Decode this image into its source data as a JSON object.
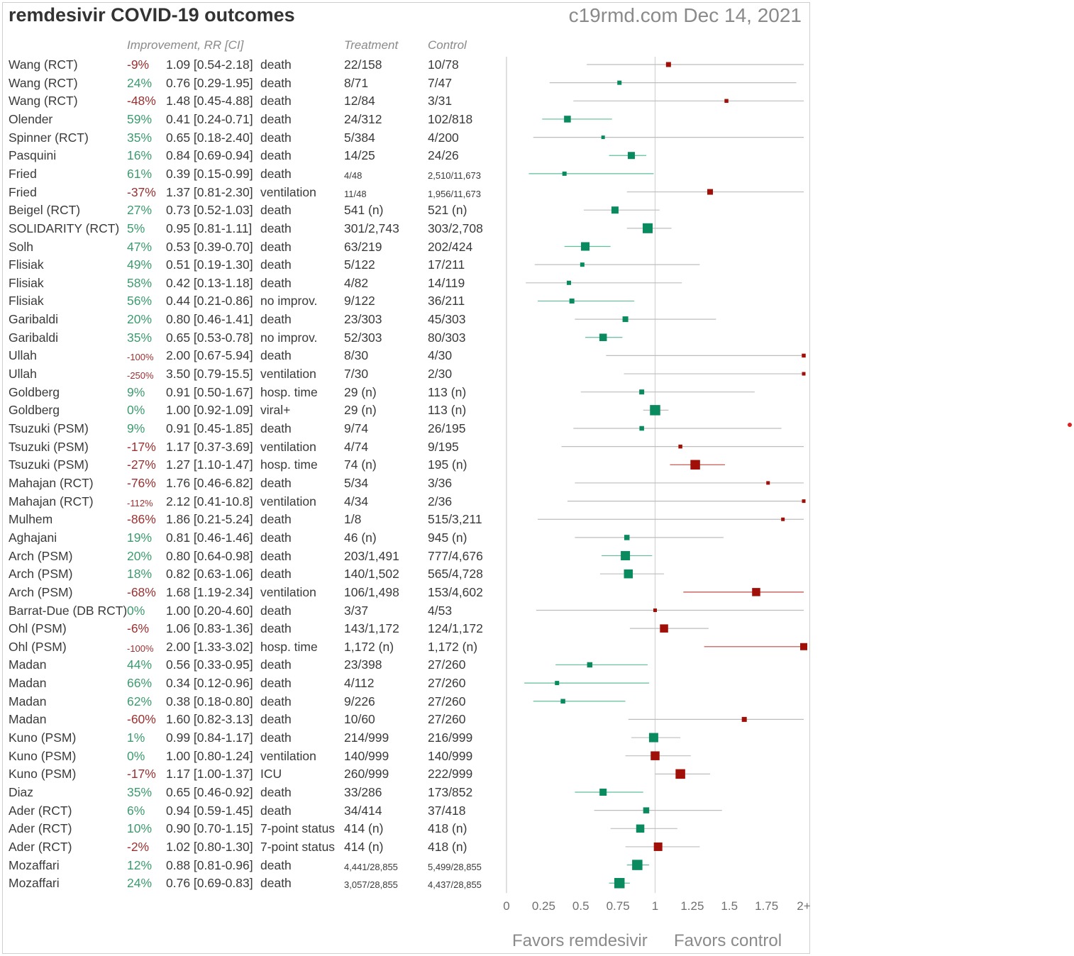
{
  "header": {
    "title": "remdesivir COVID-19 outcomes",
    "site": "c19rmd.com Dec 14, 2021",
    "col_improvement": "Improvement, RR [CI]",
    "col_treatment": "Treatment",
    "col_control": "Control"
  },
  "footer": {
    "favors_left": "Favors remdesivir",
    "favors_right": "Favors control"
  },
  "colors": {
    "good": "#0a8a5f",
    "good_line": "#5fbf97",
    "bad": "#a01008",
    "bad_line": "#c04a45",
    "neutral_line": "#bdbdbd",
    "axis": "#cccccc"
  },
  "chart_data": {
    "type": "forest",
    "xlim": [
      0,
      2
    ],
    "x_ticks": [
      "0",
      "0.25",
      "0.5",
      "0.75",
      "1",
      "1.25",
      "1.5",
      "1.75",
      "2+"
    ],
    "reference_line": 1,
    "rows": [
      {
        "study": "Wang (RCT)",
        "improvement": "-9%",
        "rr_text": "1.09 [0.54-2.18]",
        "outcome": "death",
        "treatment": "22/158",
        "control": "10/78",
        "rr": 1.09,
        "lo": 0.54,
        "hi": 2.18,
        "weight": 1
      },
      {
        "study": "Wang (RCT)",
        "improvement": "24%",
        "rr_text": "0.76 [0.29-1.95]",
        "outcome": "death",
        "treatment": "8/71",
        "control": "7/47",
        "rr": 0.76,
        "lo": 0.29,
        "hi": 1.95,
        "weight": 0.8
      },
      {
        "study": "Wang (RCT)",
        "improvement": "-48%",
        "rr_text": "1.48 [0.45-4.88]",
        "outcome": "death",
        "treatment": "12/84",
        "control": "3/31",
        "rr": 1.48,
        "lo": 0.45,
        "hi": 4.88,
        "weight": 0.7
      },
      {
        "study": "Olender",
        "improvement": "59%",
        "rr_text": "0.41 [0.24-0.71]",
        "outcome": "death",
        "treatment": "24/312",
        "control": "102/818",
        "rr": 0.41,
        "lo": 0.24,
        "hi": 0.71,
        "weight": 1.5
      },
      {
        "study": "Spinner (RCT)",
        "improvement": "35%",
        "rr_text": "0.65 [0.18-2.40]",
        "outcome": "death",
        "treatment": "5/384",
        "control": "4/200",
        "rr": 0.65,
        "lo": 0.18,
        "hi": 2.4,
        "weight": 0.6
      },
      {
        "study": "Pasquini",
        "improvement": "16%",
        "rr_text": "0.84 [0.69-0.94]",
        "outcome": "death",
        "treatment": "14/25",
        "control": "24/26",
        "rr": 0.84,
        "lo": 0.69,
        "hi": 0.94,
        "weight": 1.6
      },
      {
        "study": "Fried",
        "improvement": "61%",
        "rr_text": "0.39 [0.15-0.99]",
        "outcome": "death",
        "treatment": "4/48",
        "control": "2,510/11,673",
        "rr": 0.39,
        "lo": 0.15,
        "hi": 0.99,
        "weight": 0.8,
        "small_counts": true
      },
      {
        "study": "Fried",
        "improvement": "-37%",
        "rr_text": "1.37 [0.81-2.30]",
        "outcome": "ventilation",
        "treatment": "11/48",
        "control": "1,956/11,673",
        "rr": 1.37,
        "lo": 0.81,
        "hi": 2.3,
        "weight": 1.2,
        "small_counts": true
      },
      {
        "study": "Beigel (RCT)",
        "improvement": "27%",
        "rr_text": "0.73 [0.52-1.03]",
        "outcome": "death",
        "treatment": "541 (n)",
        "control": "521 (n)",
        "rr": 0.73,
        "lo": 0.52,
        "hi": 1.03,
        "weight": 1.6
      },
      {
        "study": "SOLIDARITY (RCT)",
        "improvement": "5%",
        "rr_text": "0.95 [0.81-1.11]",
        "outcome": "death",
        "treatment": "301/2,743",
        "control": "303/2,708",
        "rr": 0.95,
        "lo": 0.81,
        "hi": 1.11,
        "weight": 2.4
      },
      {
        "study": "Solh",
        "improvement": "47%",
        "rr_text": "0.53 [0.39-0.70]",
        "outcome": "death",
        "treatment": "63/219",
        "control": "202/424",
        "rr": 0.53,
        "lo": 0.39,
        "hi": 0.7,
        "weight": 2.0
      },
      {
        "study": "Flisiak",
        "improvement": "49%",
        "rr_text": "0.51 [0.19-1.30]",
        "outcome": "death",
        "treatment": "5/122",
        "control": "17/211",
        "rr": 0.51,
        "lo": 0.19,
        "hi": 1.3,
        "weight": 0.8
      },
      {
        "study": "Flisiak",
        "improvement": "58%",
        "rr_text": "0.42 [0.13-1.18]",
        "outcome": "death",
        "treatment": "4/82",
        "control": "14/119",
        "rr": 0.42,
        "lo": 0.13,
        "hi": 1.18,
        "weight": 0.8
      },
      {
        "study": "Flisiak",
        "improvement": "56%",
        "rr_text": "0.44 [0.21-0.86]",
        "outcome": "no improv.",
        "treatment": "9/122",
        "control": "36/211",
        "rr": 0.44,
        "lo": 0.21,
        "hi": 0.86,
        "weight": 1.0
      },
      {
        "study": "Garibaldi",
        "improvement": "20%",
        "rr_text": "0.80 [0.46-1.41]",
        "outcome": "death",
        "treatment": "23/303",
        "control": "45/303",
        "rr": 0.8,
        "lo": 0.46,
        "hi": 1.41,
        "weight": 1.2
      },
      {
        "study": "Garibaldi",
        "improvement": "35%",
        "rr_text": "0.65 [0.53-0.78]",
        "outcome": "no improv.",
        "treatment": "52/303",
        "control": "80/303",
        "rr": 0.65,
        "lo": 0.53,
        "hi": 0.78,
        "weight": 1.7
      },
      {
        "study": "Ullah",
        "improvement": "-100%",
        "rr_text": "2.00 [0.67-5.94]",
        "outcome": "death",
        "treatment": "8/30",
        "control": "4/30",
        "rr": 2.0,
        "lo": 0.67,
        "hi": 5.94,
        "weight": 0.7,
        "small_imp": true
      },
      {
        "study": "Ullah",
        "improvement": "-250%",
        "rr_text": "3.50 [0.79-15.5]",
        "outcome": "ventilation",
        "treatment": "7/30",
        "control": "2/30",
        "rr": 3.5,
        "lo": 0.79,
        "hi": 15.5,
        "weight": 0.6,
        "small_imp": true
      },
      {
        "study": "Goldberg",
        "improvement": "9%",
        "rr_text": "0.91 [0.50-1.67]",
        "outcome": "hosp. time",
        "treatment": "29 (n)",
        "control": "113 (n)",
        "rr": 0.91,
        "lo": 0.5,
        "hi": 1.67,
        "weight": 1.0
      },
      {
        "study": "Goldberg",
        "improvement": "0%",
        "rr_text": "1.00 [0.92-1.09]",
        "outcome": "viral+",
        "treatment": "29 (n)",
        "control": "113 (n)",
        "rr": 1.0,
        "lo": 0.92,
        "hi": 1.09,
        "weight": 2.5
      },
      {
        "study": "Tsuzuki (PSM)",
        "improvement": "9%",
        "rr_text": "0.91 [0.45-1.85]",
        "outcome": "death",
        "treatment": "9/74",
        "control": "26/195",
        "rr": 0.91,
        "lo": 0.45,
        "hi": 1.85,
        "weight": 0.9
      },
      {
        "study": "Tsuzuki (PSM)",
        "improvement": "-17%",
        "rr_text": "1.17 [0.37-3.69]",
        "outcome": "ventilation",
        "treatment": "4/74",
        "control": "9/195",
        "rr": 1.17,
        "lo": 0.37,
        "hi": 3.69,
        "weight": 0.7
      },
      {
        "study": "Tsuzuki (PSM)",
        "improvement": "-27%",
        "rr_text": "1.27 [1.10-1.47]",
        "outcome": "hosp. time",
        "treatment": "74 (n)",
        "control": "195 (n)",
        "rr": 1.27,
        "lo": 1.1,
        "hi": 1.47,
        "weight": 2.3
      },
      {
        "study": "Mahajan (RCT)",
        "improvement": "-76%",
        "rr_text": "1.76 [0.46-6.82]",
        "outcome": "death",
        "treatment": "5/34",
        "control": "3/36",
        "rr": 1.76,
        "lo": 0.46,
        "hi": 6.82,
        "weight": 0.6
      },
      {
        "study": "Mahajan (RCT)",
        "improvement": "-112%",
        "rr_text": "2.12 [0.41-10.8]",
        "outcome": "ventilation",
        "treatment": "4/34",
        "control": "2/36",
        "rr": 2.12,
        "lo": 0.41,
        "hi": 10.8,
        "weight": 0.6,
        "small_imp": true
      },
      {
        "study": "Mulhem",
        "improvement": "-86%",
        "rr_text": "1.86 [0.21-5.24]",
        "outcome": "death",
        "treatment": "1/8",
        "control": "515/3,211",
        "rr": 1.86,
        "lo": 0.21,
        "hi": 5.24,
        "weight": 0.6
      },
      {
        "study": "Aghajani",
        "improvement": "19%",
        "rr_text": "0.81 [0.46-1.46]",
        "outcome": "death",
        "treatment": "46 (n)",
        "control": "945 (n)",
        "rr": 0.81,
        "lo": 0.46,
        "hi": 1.46,
        "weight": 1.1
      },
      {
        "study": "Arch (PSM)",
        "improvement": "20%",
        "rr_text": "0.80 [0.64-0.98]",
        "outcome": "death",
        "treatment": "203/1,491",
        "control": "777/4,676",
        "rr": 0.8,
        "lo": 0.64,
        "hi": 0.98,
        "weight": 2.2
      },
      {
        "study": "Arch (PSM)",
        "improvement": "18%",
        "rr_text": "0.82 [0.63-1.06]",
        "outcome": "death",
        "treatment": "140/1,502",
        "control": "565/4,728",
        "rr": 0.82,
        "lo": 0.63,
        "hi": 1.06,
        "weight": 2.1
      },
      {
        "study": "Arch (PSM)",
        "improvement": "-68%",
        "rr_text": "1.68 [1.19-2.34]",
        "outcome": "ventilation",
        "treatment": "106/1,498",
        "control": "153/4,602",
        "rr": 1.68,
        "lo": 1.19,
        "hi": 2.34,
        "weight": 1.9
      },
      {
        "study": "Barrat-Due (DB RCT)",
        "improvement": "0%",
        "rr_text": "1.00 [0.20-4.60]",
        "outcome": "death",
        "treatment": "3/37",
        "control": "4/53",
        "rr": 1.0,
        "lo": 0.2,
        "hi": 4.6,
        "weight": 0.6
      },
      {
        "study": "Ohl (PSM)",
        "improvement": "-6%",
        "rr_text": "1.06 [0.83-1.36]",
        "outcome": "death",
        "treatment": "143/1,172",
        "control": "124/1,172",
        "rr": 1.06,
        "lo": 0.83,
        "hi": 1.36,
        "weight": 1.9
      },
      {
        "study": "Ohl (PSM)",
        "improvement": "-100%",
        "rr_text": "2.00 [1.33-3.02]",
        "outcome": "hosp. time",
        "treatment": "1,172 (n)",
        "control": "1,172 (n)",
        "rr": 2.0,
        "lo": 1.33,
        "hi": 3.02,
        "weight": 1.6,
        "small_imp": true
      },
      {
        "study": "Madan",
        "improvement": "44%",
        "rr_text": "0.56 [0.33-0.95]",
        "outcome": "death",
        "treatment": "23/398",
        "control": "27/260",
        "rr": 0.56,
        "lo": 0.33,
        "hi": 0.95,
        "weight": 1.1
      },
      {
        "study": "Madan",
        "improvement": "66%",
        "rr_text": "0.34 [0.12-0.96]",
        "outcome": "death",
        "treatment": "4/112",
        "control": "27/260",
        "rr": 0.34,
        "lo": 0.12,
        "hi": 0.96,
        "weight": 0.8
      },
      {
        "study": "Madan",
        "improvement": "62%",
        "rr_text": "0.38 [0.18-0.80]",
        "outcome": "death",
        "treatment": "9/226",
        "control": "27/260",
        "rr": 0.38,
        "lo": 0.18,
        "hi": 0.8,
        "weight": 0.9
      },
      {
        "study": "Madan",
        "improvement": "-60%",
        "rr_text": "1.60 [0.82-3.13]",
        "outcome": "death",
        "treatment": "10/60",
        "control": "27/260",
        "rr": 1.6,
        "lo": 0.82,
        "hi": 3.13,
        "weight": 1.0
      },
      {
        "study": "Kuno (PSM)",
        "improvement": "1%",
        "rr_text": "0.99 [0.84-1.17]",
        "outcome": "death",
        "treatment": "214/999",
        "control": "216/999",
        "rr": 0.99,
        "lo": 0.84,
        "hi": 1.17,
        "weight": 2.2
      },
      {
        "study": "Kuno (PSM)",
        "improvement": "0%",
        "rr_text": "1.00 [0.80-1.24]",
        "outcome": "ventilation",
        "treatment": "140/999",
        "control": "140/999",
        "rr": 1.0,
        "lo": 0.8,
        "hi": 1.24,
        "weight": 2.1
      },
      {
        "study": "Kuno (PSM)",
        "improvement": "-17%",
        "rr_text": "1.17 [1.00-1.37]",
        "outcome": "ICU",
        "treatment": "260/999",
        "control": "222/999",
        "rr": 1.17,
        "lo": 1.0,
        "hi": 1.37,
        "weight": 2.3
      },
      {
        "study": "Diaz",
        "improvement": "35%",
        "rr_text": "0.65 [0.46-0.92]",
        "outcome": "death",
        "treatment": "33/286",
        "control": "173/852",
        "rr": 0.65,
        "lo": 0.46,
        "hi": 0.92,
        "weight": 1.6
      },
      {
        "study": "Ader (RCT)",
        "improvement": "6%",
        "rr_text": "0.94 [0.59-1.45]",
        "outcome": "death",
        "treatment": "34/414",
        "control": "37/418",
        "rr": 0.94,
        "lo": 0.59,
        "hi": 1.45,
        "weight": 1.3
      },
      {
        "study": "Ader (RCT)",
        "improvement": "10%",
        "rr_text": "0.90 [0.70-1.15]",
        "outcome": "7-point status",
        "treatment": "414 (n)",
        "control": "418 (n)",
        "rr": 0.9,
        "lo": 0.7,
        "hi": 1.15,
        "weight": 1.9
      },
      {
        "study": "Ader (RCT)",
        "improvement": "-2%",
        "rr_text": "1.02 [0.80-1.30]",
        "outcome": "7-point status",
        "treatment": "414 (n)",
        "control": "418 (n)",
        "rr": 1.02,
        "lo": 0.8,
        "hi": 1.3,
        "weight": 2.0
      },
      {
        "study": "Mozaffari",
        "improvement": "12%",
        "rr_text": "0.88 [0.81-0.96]",
        "outcome": "death",
        "treatment": "4,441/28,855",
        "control": "5,499/28,855",
        "rr": 0.88,
        "lo": 0.81,
        "hi": 0.96,
        "weight": 2.5,
        "small_counts": true
      },
      {
        "study": "Mozaffari",
        "improvement": "24%",
        "rr_text": "0.76 [0.69-0.83]",
        "outcome": "death",
        "treatment": "3,057/28,855",
        "control": "4,437/28,855",
        "rr": 0.76,
        "lo": 0.69,
        "hi": 0.83,
        "weight": 2.5,
        "small_counts": true
      }
    ]
  }
}
